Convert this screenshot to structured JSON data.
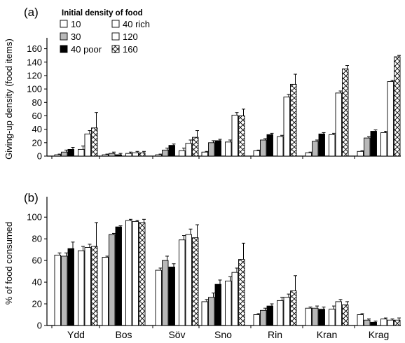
{
  "chart_data": [
    {
      "panel_label": "(a)",
      "type": "bar",
      "ylabel": "Giving-up density (food items)",
      "ylim": [
        0,
        170
      ],
      "yticks": [
        0,
        20,
        40,
        60,
        80,
        100,
        120,
        140,
        160
      ],
      "categories": [
        "Ydd",
        "Bos",
        "Söv",
        "Sno",
        "Rin",
        "Kran",
        "Krag"
      ],
      "series": [
        {
          "name": "10",
          "values": [
            2,
            2,
            2,
            6,
            8,
            5,
            7
          ],
          "errors": [
            1,
            1,
            1,
            1,
            1,
            1,
            1
          ]
        },
        {
          "name": "30",
          "values": [
            6,
            4,
            9,
            20,
            24,
            22,
            27
          ],
          "errors": [
            3,
            2,
            3,
            3,
            2,
            2,
            2
          ]
        },
        {
          "name": "40 poor",
          "values": [
            10,
            2,
            16,
            23,
            32,
            33,
            37
          ],
          "errors": [
            3,
            2,
            2,
            2,
            2,
            2,
            2
          ]
        },
        {
          "name": "40 rich",
          "values": [
            10,
            4,
            8,
            21,
            29,
            32,
            35
          ],
          "errors": [
            5,
            2,
            4,
            3,
            2,
            2,
            2
          ]
        },
        {
          "name": "120",
          "values": [
            33,
            5,
            19,
            61,
            88,
            94,
            111
          ],
          "errors": [
            5,
            2,
            5,
            4,
            4,
            3,
            2
          ]
        },
        {
          "name": "160",
          "values": [
            42,
            5,
            28,
            60,
            107,
            130,
            148
          ],
          "errors": [
            23,
            2,
            10,
            10,
            15,
            5,
            2
          ]
        }
      ],
      "legend": {
        "title": "Initial density of food",
        "entries": [
          "10",
          "30",
          "40 poor",
          "40 rich",
          "120",
          "160"
        ]
      }
    },
    {
      "panel_label": "(b)",
      "type": "bar",
      "ylabel": "% of food consumed",
      "ylim": [
        0,
        115
      ],
      "yticks": [
        0,
        20,
        40,
        60,
        80,
        100
      ],
      "categories": [
        "Ydd",
        "Bos",
        "Söv",
        "Sno",
        "Rin",
        "Kran",
        "Krag"
      ],
      "series": [
        {
          "name": "10",
          "values": [
            65,
            63,
            51,
            22,
            10,
            16,
            10
          ],
          "errors": [
            2,
            1,
            2,
            2,
            1,
            1,
            1
          ]
        },
        {
          "name": "30",
          "values": [
            64,
            84,
            60,
            26,
            14,
            16,
            5
          ],
          "errors": [
            3,
            1,
            4,
            4,
            2,
            2,
            1
          ]
        },
        {
          "name": "40 poor",
          "values": [
            71,
            91,
            54,
            38,
            18,
            15,
            3
          ],
          "errors": [
            6,
            1,
            3,
            4,
            2,
            2,
            1
          ]
        },
        {
          "name": "40 rich",
          "values": [
            69,
            97,
            79,
            41,
            23,
            15,
            6
          ],
          "errors": [
            4,
            1,
            4,
            4,
            3,
            3,
            1
          ]
        },
        {
          "name": "120",
          "values": [
            72,
            96,
            84,
            49,
            26,
            22,
            5
          ],
          "errors": [
            3,
            1,
            5,
            4,
            3,
            2,
            1
          ]
        },
        {
          "name": "160",
          "values": [
            73,
            95,
            81,
            61,
            32,
            19,
            5
          ],
          "errors": [
            22,
            3,
            12,
            15,
            14,
            3,
            2
          ]
        }
      ]
    }
  ],
  "series_styles": [
    {
      "fill": "#ffffff",
      "pattern": "none"
    },
    {
      "fill": "#b8b8b8",
      "pattern": "none"
    },
    {
      "fill": "#000000",
      "pattern": "none"
    },
    {
      "fill": "#ffffff",
      "pattern": "none"
    },
    {
      "fill": "#ffffff",
      "pattern": "none"
    },
    {
      "fill": "#ffffff",
      "pattern": "crosshatch"
    }
  ]
}
